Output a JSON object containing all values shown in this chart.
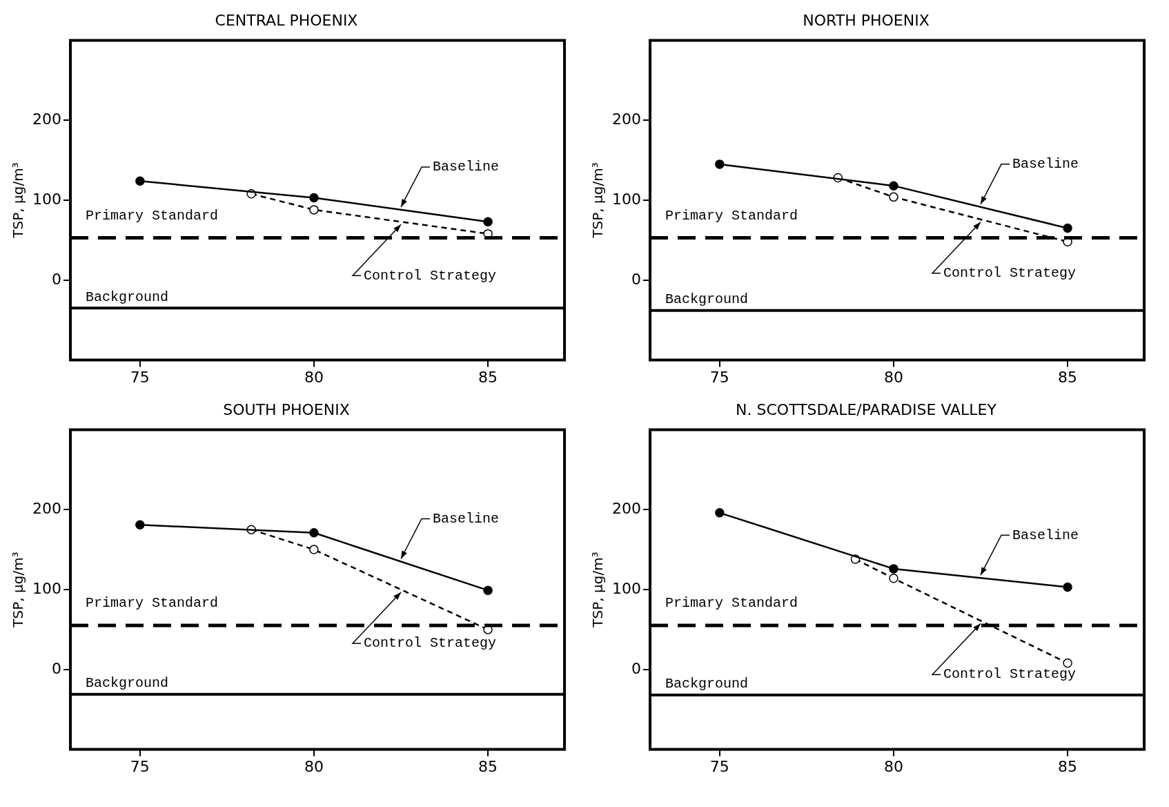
{
  "chart_data": [
    {
      "type": "line",
      "title": "CENTRAL PHOENIX",
      "ylabel": "TSP, μg/m³",
      "xlim": [
        73,
        87.2
      ],
      "ylim": [
        -100,
        300
      ],
      "xticks": [
        75,
        80,
        85
      ],
      "yticks": [
        0,
        100,
        200
      ],
      "grid": false,
      "marker": "circle",
      "series": [
        {
          "name": "Baseline",
          "color": "#000000",
          "line_style": "solid",
          "x": [
            75,
            80,
            85
          ],
          "values": [
            124,
            103,
            73
          ]
        },
        {
          "name": "Control Strategy",
          "color": "#000000",
          "line_style": "dashed",
          "x": [
            78.2,
            80,
            85
          ],
          "values": [
            108,
            88,
            58
          ]
        }
      ],
      "ref_lines": [
        {
          "axis": "y",
          "value": 53,
          "label": "Primary Standard",
          "line_style": "dashed",
          "color": "#000000"
        },
        {
          "axis": "y",
          "value": -35,
          "label": "Background",
          "line_style": "solid",
          "color": "#000000"
        }
      ]
    },
    {
      "type": "line",
      "title": "NORTH PHOENIX",
      "ylabel": "TSP, μg/m³",
      "xlim": [
        73,
        87.2
      ],
      "ylim": [
        -100,
        300
      ],
      "xticks": [
        75,
        80,
        85
      ],
      "yticks": [
        0,
        100,
        200
      ],
      "grid": false,
      "marker": "circle",
      "series": [
        {
          "name": "Baseline",
          "color": "#000000",
          "line_style": "solid",
          "x": [
            75,
            80,
            85
          ],
          "values": [
            145,
            118,
            65
          ]
        },
        {
          "name": "Control Strategy",
          "color": "#000000",
          "line_style": "dashed",
          "x": [
            78.4,
            80,
            85
          ],
          "values": [
            128,
            104,
            48
          ]
        }
      ],
      "ref_lines": [
        {
          "axis": "y",
          "value": 53,
          "label": "Primary Standard",
          "line_style": "dashed",
          "color": "#000000"
        },
        {
          "axis": "y",
          "value": -38,
          "label": "Background",
          "line_style": "solid",
          "color": "#000000"
        }
      ]
    },
    {
      "type": "line",
      "title": "SOUTH PHOENIX",
      "ylabel": "TSP, μg/m³",
      "xlim": [
        73,
        87.2
      ],
      "ylim": [
        -100,
        300
      ],
      "xticks": [
        75,
        80,
        85
      ],
      "yticks": [
        0,
        100,
        200
      ],
      "grid": false,
      "marker": "circle",
      "series": [
        {
          "name": "Baseline",
          "color": "#000000",
          "line_style": "solid",
          "x": [
            75,
            80,
            85
          ],
          "values": [
            181,
            171,
            99
          ]
        },
        {
          "name": "Control Strategy",
          "color": "#000000",
          "line_style": "dashed",
          "x": [
            78.2,
            80,
            85
          ],
          "values": [
            175,
            150,
            50
          ]
        }
      ],
      "ref_lines": [
        {
          "axis": "y",
          "value": 55,
          "label": "Primary Standard",
          "line_style": "dashed",
          "color": "#000000"
        },
        {
          "axis": "y",
          "value": -31,
          "label": "Background",
          "line_style": "solid",
          "color": "#000000"
        }
      ]
    },
    {
      "type": "line",
      "title": "N. SCOTTSDALE/PARADISE VALLEY",
      "ylabel": "TSP, μg/m³",
      "xlim": [
        73,
        87.2
      ],
      "ylim": [
        -100,
        300
      ],
      "xticks": [
        75,
        80,
        85
      ],
      "yticks": [
        0,
        100,
        200
      ],
      "grid": false,
      "marker": "circle",
      "series": [
        {
          "name": "Baseline",
          "color": "#000000",
          "line_style": "solid",
          "x": [
            75,
            80,
            85
          ],
          "values": [
            196,
            126,
            103
          ]
        },
        {
          "name": "Control Strategy",
          "color": "#000000",
          "line_style": "dashed",
          "x": [
            78.9,
            80,
            85
          ],
          "values": [
            138,
            114,
            8
          ]
        }
      ],
      "ref_lines": [
        {
          "axis": "y",
          "value": 55,
          "label": "Primary Standard",
          "line_style": "dashed",
          "color": "#000000"
        },
        {
          "axis": "y",
          "value": -32,
          "label": "Background",
          "line_style": "solid",
          "color": "#000000"
        }
      ]
    }
  ]
}
